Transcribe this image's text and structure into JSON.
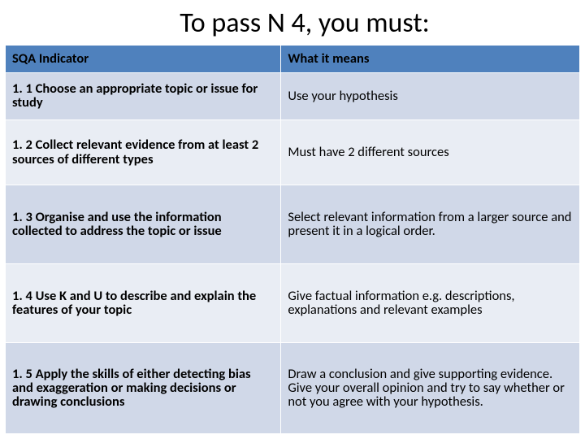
{
  "title": "To pass N 4, you must:",
  "colors": {
    "header_bg": "#4f81bd",
    "band_a": "#d0d8e8",
    "band_b": "#e9edf4",
    "border": "#ffffff",
    "text": "#000000",
    "background": "#ffffff"
  },
  "typography": {
    "title_fontsize": 34,
    "title_weight": 400,
    "body_fontsize": 16.5,
    "header_weight": 700,
    "left_col_weight": 700,
    "right_col_weight": 400,
    "font_family": "Calibri"
  },
  "table": {
    "type": "table",
    "columns": [
      "SQA Indicator",
      "What it means"
    ],
    "col_widths_pct": [
      48,
      52
    ],
    "rows": [
      {
        "indicator": "1. 1 Choose an appropriate topic or issue for study",
        "meaning": "Use your hypothesis"
      },
      {
        "indicator": "1. 2 Collect relevant evidence from at least 2 sources of different types",
        "meaning": "Must have 2 different sources"
      },
      {
        "indicator": "1. 3 Organise and use the information collected to address the topic or issue",
        "meaning": "Select  relevant information from a larger source and present it in a logical order."
      },
      {
        "indicator": "1. 4 Use K and U to describe and explain the features of your topic",
        "meaning": "Give factual information e.g. descriptions, explanations and relevant examples"
      },
      {
        "indicator": "1. 5 Apply the skills of either detecting bias and exaggeration or making decisions or drawing conclusions",
        "meaning": "Draw a conclusion and give supporting evidence.  Give your overall opinion and try to say whether or not you agree with your hypothesis."
      }
    ]
  }
}
